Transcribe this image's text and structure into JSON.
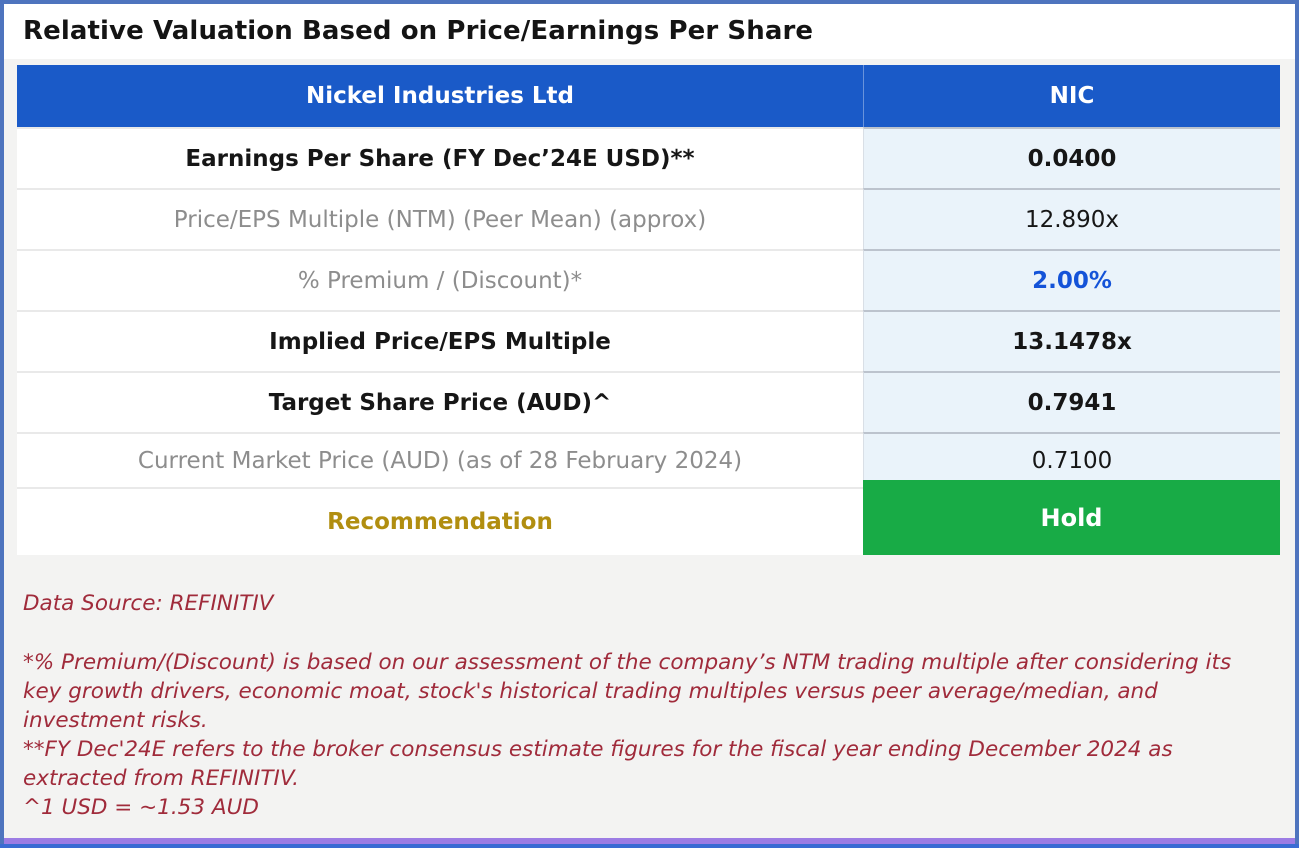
{
  "title": "Relative Valuation Based on Price/Earnings Per Share",
  "table": {
    "header": {
      "company": "Nickel Industries Ltd",
      "ticker": "NIC"
    },
    "rows": [
      {
        "label": "Earnings Per Share (FY Dec’24E USD)**",
        "value": "0.0400",
        "label_style": "bold",
        "value_style": "bold"
      },
      {
        "label": "Price/EPS Multiple (NTM) (Peer Mean) (approx)",
        "value": "12.890x",
        "label_style": "muted",
        "value_style": "regular"
      },
      {
        "label": "% Premium / (Discount)*",
        "value": "2.00%",
        "label_style": "muted",
        "value_style": "blue-bold"
      },
      {
        "label": "Implied Price/EPS Multiple",
        "value": "13.1478x",
        "label_style": "bold",
        "value_style": "bold"
      },
      {
        "label": "Target Share Price (AUD)^",
        "value": "0.7941",
        "label_style": "bold",
        "value_style": "bold"
      },
      {
        "label": "Current Market Price (AUD) (as of 28 February 2024)",
        "value": "0.7100",
        "label_style": "muted",
        "value_style": "regular"
      },
      {
        "label": "Recommendation",
        "value": "Hold",
        "label_style": "gold",
        "value_style": "hold"
      }
    ]
  },
  "footnotes": {
    "source": "Data Source: REFINITIV",
    "notes": [
      "*% Premium/(Discount) is based on our assessment of the company’s NTM trading multiple after considering its key growth drivers, economic moat, stock's historical trading multiples versus peer average/median, and investment risks.",
      "**FY Dec'24E refers to the broker consensus estimate figures for the fiscal year ending December 2024 as extracted from REFINITIV.",
      "^1 USD = ~1.53 AUD"
    ]
  },
  "colors": {
    "header_blue": "#1a5ac8",
    "value_column_bg": "#eaf3fa",
    "premium_value_blue": "#1453d8",
    "recommendation_gold": "#b18e10",
    "hold_green": "#18ab46",
    "footnote_red": "#a02b3b",
    "frame_border_blue": "#4e74be",
    "bottom_bar_purple": "#9c7ce4",
    "bottom_bar_blue": "#3a6bd3"
  }
}
